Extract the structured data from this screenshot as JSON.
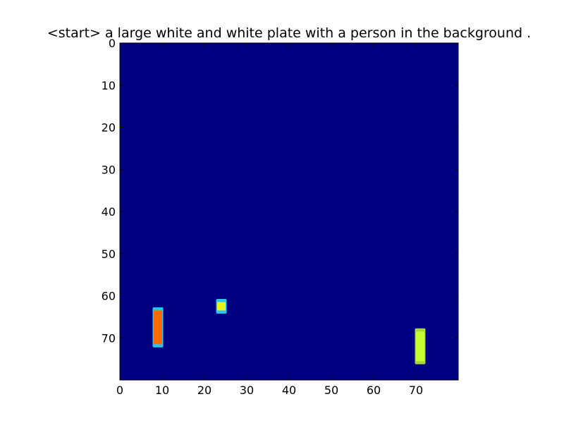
{
  "chart_data": {
    "type": "heatmap",
    "title": "<start> a large white and white plate with a person in the background .",
    "xlabel": "",
    "ylabel": "",
    "colormap": "jet",
    "background_color": "#000080",
    "xlim": [
      0,
      80
    ],
    "ylim": [
      80,
      0
    ],
    "x_ticks": [
      0,
      10,
      20,
      30,
      40,
      50,
      60,
      70
    ],
    "y_ticks": [
      0,
      10,
      20,
      30,
      40,
      50,
      60,
      70
    ],
    "grid": false,
    "highlights": [
      {
        "x": [
          8,
          10
        ],
        "y": [
          63,
          72
        ],
        "color": "#ff6a00",
        "edge_color": "#33e6ff"
      },
      {
        "x": [
          23,
          25
        ],
        "y": [
          61,
          64
        ],
        "color": "#e8f020",
        "edge_color": "#33e6ff"
      },
      {
        "x": [
          70,
          72
        ],
        "y": [
          68,
          76
        ],
        "color": "#c6ff2e",
        "edge_color": "#c6ff2e"
      }
    ]
  }
}
